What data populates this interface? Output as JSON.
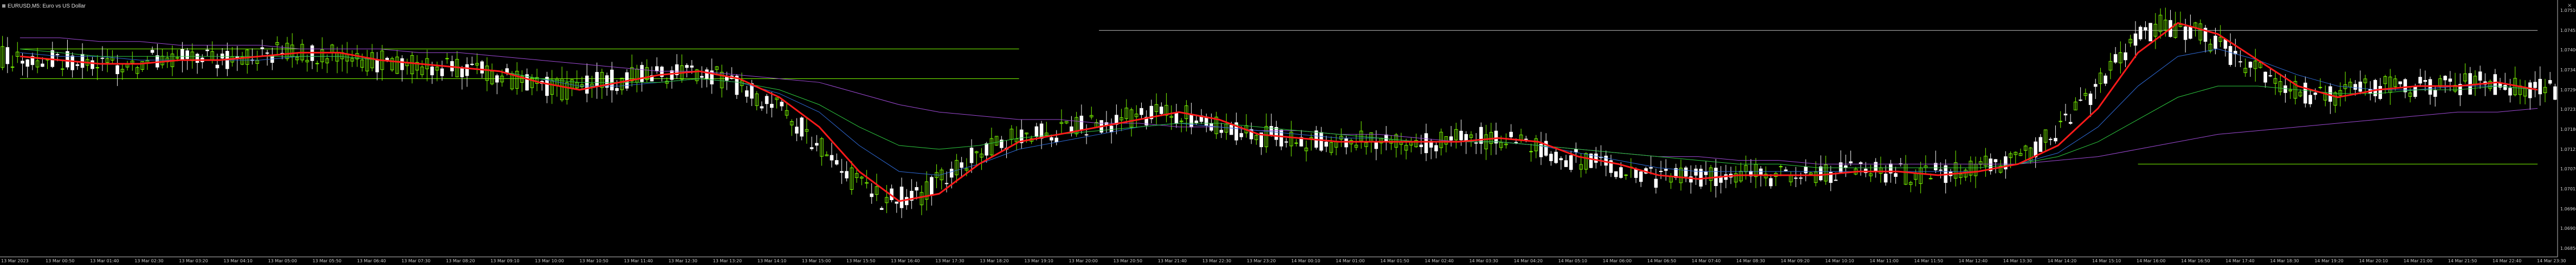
{
  "window": {
    "title": "EURUSD,M5:  Euro vs US Dollar"
  },
  "colors": {
    "background": "#000000",
    "bull_candle": "#7CFC00",
    "bear_candle": "#ffffff",
    "ema_fast": "#ff1a1a",
    "ma_green": "#2ecc40",
    "ma_blue": "#2f6bd8",
    "ma_purple": "#a04bd8",
    "hline": "#7CFC00",
    "gray_line": "#bfbfbf"
  },
  "time_axis": {
    "labels": [
      "13 Mar 2023",
      "13 Mar 00:50",
      "13 Mar 01:40",
      "13 Mar 02:30",
      "13 Mar 03:20",
      "13 Mar 04:10",
      "13 Mar 05:00",
      "13 Mar 05:50",
      "13 Mar 06:40",
      "13 Mar 07:30",
      "13 Mar 08:20",
      "13 Mar 09:10",
      "13 Mar 10:00",
      "13 Mar 10:50",
      "13 Mar 11:40",
      "13 Mar 12:30",
      "13 Mar 13:20",
      "13 Mar 14:10",
      "13 Mar 15:00",
      "13 Mar 15:50",
      "13 Mar 16:40",
      "13 Mar 17:30",
      "13 Mar 18:20",
      "13 Mar 19:10",
      "13 Mar 20:00",
      "13 Mar 20:50",
      "13 Mar 21:40",
      "13 Mar 22:30",
      "13 Mar 23:20",
      "14 Mar 00:10",
      "14 Mar 01:00",
      "14 Mar 01:50",
      "14 Mar 02:40",
      "14 Mar 03:30",
      "14 Mar 04:20",
      "14 Mar 05:10",
      "14 Mar 06:00",
      "14 Mar 06:50",
      "14 Mar 07:40",
      "14 Mar 08:30",
      "14 Mar 09:20",
      "14 Mar 10:10",
      "14 Mar 11:00",
      "14 Mar 11:50",
      "14 Mar 12:40",
      "14 Mar 13:30",
      "14 Mar 14:20",
      "14 Mar 15:10",
      "14 Mar 16:00",
      "14 Mar 16:50",
      "14 Mar 17:40",
      "14 Mar 18:30",
      "14 Mar 19:20",
      "14 Mar 20:10",
      "14 Mar 21:00",
      "14 Mar 21:50",
      "14 Mar 22:40",
      "14 Mar 23:30"
    ]
  },
  "price_axis": {
    "labels": [
      "1.07510",
      "1.07455",
      "1.07400",
      "1.07345",
      "1.07290",
      "1.07235",
      "1.07180",
      "1.07125",
      "1.07070",
      "1.07015",
      "1.06960",
      "1.06905",
      "1.06850"
    ]
  },
  "chart_data": {
    "type": "line",
    "title": "EURUSD,M5:  Euro vs US Dollar",
    "xlabel": "",
    "ylabel": "",
    "ylim": [
      1.0685,
      1.0752
    ],
    "grid": false,
    "series": [
      {
        "name": "",
        "color": "#ff1a1a",
        "x_label": "bar_index",
        "values_desc": "fast moving average",
        "values": [
          1.0739,
          1.0738,
          1.0737,
          1.0737,
          1.0738,
          1.0738,
          1.0739,
          1.074,
          1.074,
          1.0738,
          1.0737,
          1.0736,
          1.0735,
          1.0732,
          1.073,
          1.0732,
          1.0734,
          1.0735,
          1.0733,
          1.0728,
          1.072,
          1.0708,
          1.07,
          1.0702,
          1.071,
          1.0716,
          1.0718,
          1.072,
          1.0722,
          1.0724,
          1.0722,
          1.0718,
          1.0717,
          1.0716,
          1.0716,
          1.0716,
          1.0716,
          1.0717,
          1.0716,
          1.0712,
          1.071,
          1.0707,
          1.0706,
          1.0707,
          1.0707,
          1.0707,
          1.0708,
          1.0708,
          1.0707,
          1.0708,
          1.071,
          1.0715,
          1.0725,
          1.074,
          1.0748,
          1.0745,
          1.0738,
          1.0731,
          1.0728,
          1.073,
          1.0731,
          1.0731,
          1.0732,
          1.073
        ]
      },
      {
        "name": "",
        "color": "#2ecc40",
        "values": [
          1.0741,
          1.074,
          1.0739,
          1.0739,
          1.0739,
          1.0739,
          1.0739,
          1.0739,
          1.0739,
          1.0738,
          1.0737,
          1.0736,
          1.0735,
          1.0733,
          1.0732,
          1.0732,
          1.0732,
          1.0733,
          1.0732,
          1.073,
          1.0726,
          1.072,
          1.0715,
          1.0714,
          1.0715,
          1.0717,
          1.0718,
          1.0719,
          1.072,
          1.0721,
          1.0721,
          1.072,
          1.0719,
          1.0718,
          1.0717,
          1.0716,
          1.0716,
          1.0716,
          1.0715,
          1.0714,
          1.0713,
          1.0712,
          1.0711,
          1.071,
          1.071,
          1.0709,
          1.0709,
          1.0709,
          1.0709,
          1.0709,
          1.071,
          1.0712,
          1.0716,
          1.0722,
          1.0728,
          1.0731,
          1.0731,
          1.073,
          1.0729,
          1.0729,
          1.073,
          1.073,
          1.0731,
          1.073
        ]
      },
      {
        "name": "",
        "color": "#2f6bd8",
        "values": [
          1.074,
          1.0739,
          1.0739,
          1.0738,
          1.0738,
          1.0738,
          1.0738,
          1.0739,
          1.0739,
          1.0738,
          1.0737,
          1.0736,
          1.0735,
          1.0733,
          1.0731,
          1.0731,
          1.0732,
          1.0733,
          1.0732,
          1.0729,
          1.0724,
          1.0715,
          1.0708,
          1.0707,
          1.071,
          1.0714,
          1.0716,
          1.0718,
          1.072,
          1.0721,
          1.072,
          1.0719,
          1.0718,
          1.0717,
          1.0717,
          1.0716,
          1.0716,
          1.0716,
          1.0715,
          1.0713,
          1.0711,
          1.0709,
          1.0708,
          1.0708,
          1.0708,
          1.0708,
          1.0708,
          1.0708,
          1.0708,
          1.0708,
          1.071,
          1.0713,
          1.072,
          1.0731,
          1.0739,
          1.0741,
          1.0738,
          1.0734,
          1.0731,
          1.073,
          1.073,
          1.0731,
          1.0731,
          1.073
        ]
      },
      {
        "name": "",
        "color": "#a04bd8",
        "values": [
          1.0744,
          1.0744,
          1.0743,
          1.0743,
          1.0742,
          1.0742,
          1.0742,
          1.0741,
          1.0741,
          1.0741,
          1.074,
          1.074,
          1.0739,
          1.0738,
          1.0737,
          1.0736,
          1.0735,
          1.0735,
          1.0734,
          1.0733,
          1.0732,
          1.0729,
          1.0726,
          1.0724,
          1.0723,
          1.0722,
          1.0722,
          1.0721,
          1.0721,
          1.072,
          1.072,
          1.0719,
          1.0719,
          1.0718,
          1.0718,
          1.0717,
          1.0716,
          1.0716,
          1.0715,
          1.0714,
          1.0713,
          1.0712,
          1.0712,
          1.0711,
          1.0711,
          1.071,
          1.071,
          1.071,
          1.071,
          1.071,
          1.071,
          1.0711,
          1.0712,
          1.0714,
          1.0716,
          1.0718,
          1.0719,
          1.072,
          1.0721,
          1.0722,
          1.0723,
          1.0724,
          1.0724,
          1.0725
        ]
      }
    ],
    "candles_desc": "OHLC candles generated around the fast MA",
    "horizontal_lines": [
      {
        "price": 1.0741,
        "from_bar": 0,
        "to_bar": 25
      },
      {
        "price": 1.0733,
        "from_bar": 0,
        "to_bar": 25
      },
      {
        "price": 1.071,
        "from_bar": 53,
        "to_bar": 63
      },
      {
        "price": 1.0746,
        "from_bar": 27,
        "to_bar": 63
      }
    ]
  }
}
